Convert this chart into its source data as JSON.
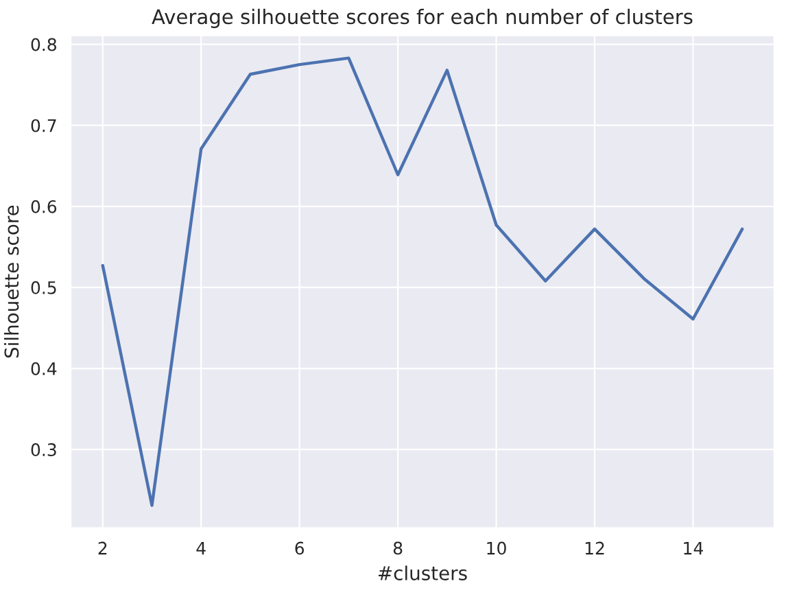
{
  "chart_data": {
    "type": "line",
    "title": "Average silhouette scores for each number of clusters",
    "xlabel": "#clusters",
    "ylabel": "Silhouette score",
    "x": [
      2,
      3,
      4,
      5,
      6,
      7,
      8,
      9,
      10,
      11,
      12,
      13,
      14,
      15
    ],
    "series": [
      {
        "color": "#4c72b0",
        "values": [
          0.527,
          0.231,
          0.671,
          0.763,
          0.775,
          0.783,
          0.639,
          0.768,
          0.577,
          0.508,
          0.572,
          0.511,
          0.461,
          0.572
        ]
      }
    ],
    "xlim": [
      1.35,
      15.65
    ],
    "ylim": [
      0.203,
      0.811
    ],
    "xticks": [
      2,
      4,
      6,
      8,
      10,
      12,
      14
    ],
    "yticks": [
      0.3,
      0.4,
      0.5,
      0.6,
      0.7,
      0.8
    ],
    "grid": true,
    "marker": "none",
    "line_style": "solid"
  }
}
